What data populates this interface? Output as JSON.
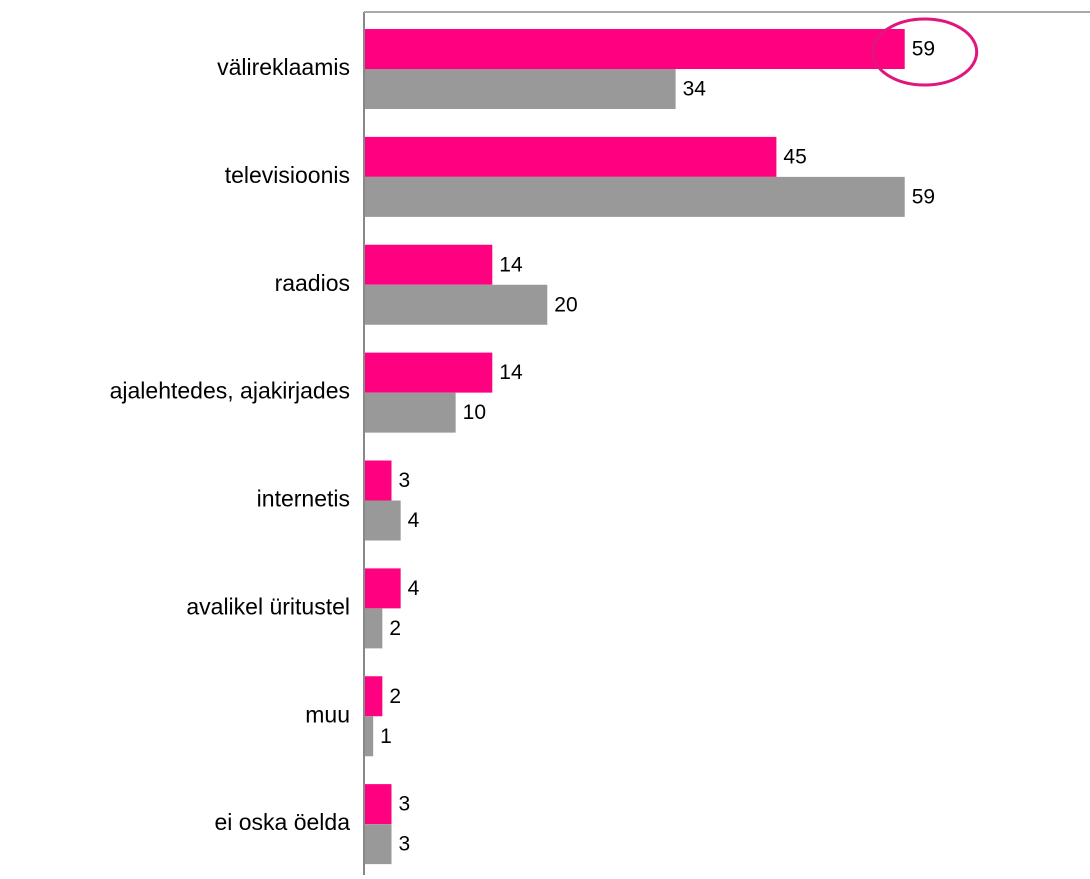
{
  "chart_data": {
    "type": "bar",
    "orientation": "horizontal",
    "categories": [
      "välireklaamis",
      "televisioonis",
      "raadios",
      "ajalehtedes, ajakirjades",
      "internetis",
      "avalikel üritustel",
      "muu",
      "ei oska öelda"
    ],
    "series": [
      {
        "color": "#ff0080",
        "values": [
          59,
          45,
          14,
          14,
          3,
          4,
          2,
          3
        ]
      },
      {
        "color": "#999999",
        "values": [
          34,
          59,
          20,
          10,
          4,
          2,
          1,
          3
        ]
      }
    ],
    "xlim": [
      0,
      79
    ]
  }
}
